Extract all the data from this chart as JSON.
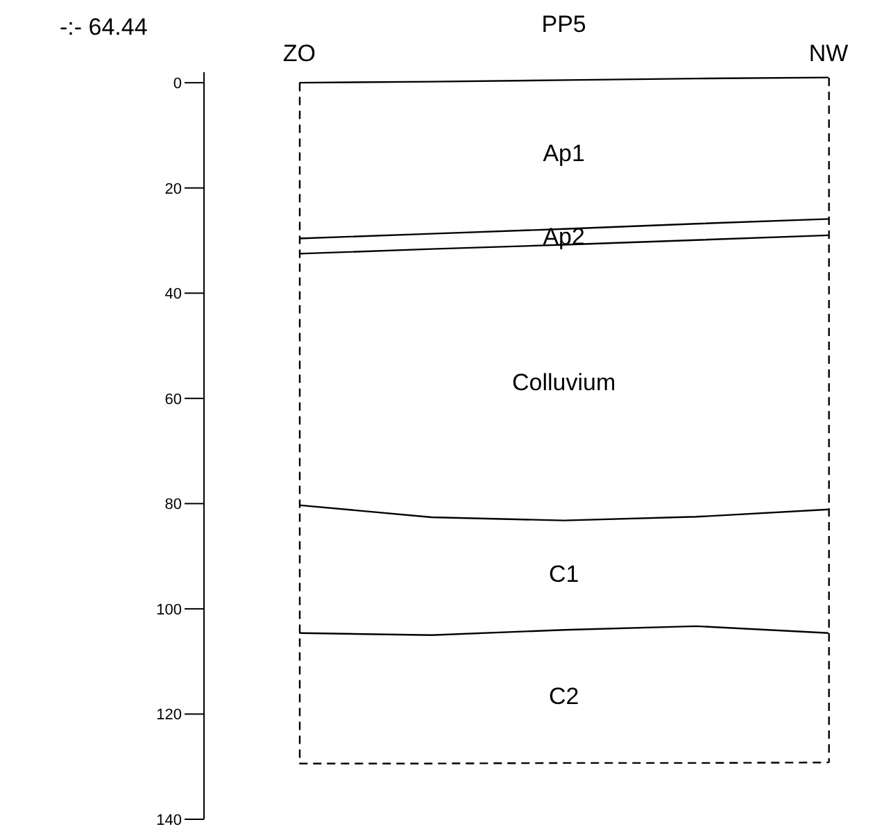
{
  "chart_data": {
    "type": "line",
    "title": "PP5",
    "categories": [
      "ZO",
      null,
      null,
      null,
      "NW"
    ],
    "ylim": [
      140,
      -2
    ],
    "yticks": [
      0,
      20,
      40,
      60,
      80,
      100,
      120,
      140
    ],
    "marker": "none",
    "annotations": [
      "-:- 64.44",
      "Ap1",
      "Ap2",
      "Colluvium",
      "C1",
      "C2"
    ],
    "series": [
      {
        "color": "#000000",
        "line_style": "solid",
        "values": [
          0,
          -0.2,
          -0.5,
          -0.8,
          -1
        ]
      },
      {
        "color": "#000000",
        "line_style": "solid",
        "values": [
          29.6,
          28.7,
          27.8,
          26.8,
          25.9
        ]
      },
      {
        "color": "#000000",
        "line_style": "solid",
        "values": [
          32.5,
          31.6,
          30.8,
          29.9,
          29
        ]
      },
      {
        "color": "#000000",
        "line_style": "solid",
        "values": [
          80.3,
          82.6,
          83.2,
          82.5,
          81.1
        ]
      },
      {
        "color": "#000000",
        "line_style": "solid",
        "values": [
          104.6,
          105,
          104,
          103.3,
          104.6
        ]
      },
      {
        "color": "#000000",
        "line_style": "dashed",
        "values": [
          129.4,
          129.4,
          129.3,
          129.3,
          129.2
        ]
      }
    ]
  }
}
